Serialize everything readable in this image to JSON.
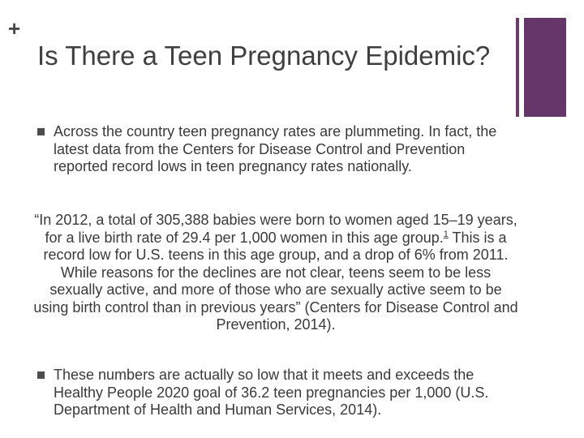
{
  "slide": {
    "corner_symbol": "+",
    "title": "Is There a Teen Pregnancy Epidemic?",
    "bullet_1": "Across the country teen pregnancy rates are plummeting. In fact, the latest data from the Centers for Disease Control and Prevention reported record lows in teen pregnancy rates nationally.",
    "quote_part_1": "“In 2012, a total of 305,388 babies were born to women aged 15–19 years, for a live birth rate of  29.4 per 1,000 women in this age group.",
    "quote_footnote": "1",
    "quote_part_2": " This is a record low for U.S. teens in this age group, and a drop of 6% from 2011. While reasons for the declines are not clear, teens seem to be less sexually active, and more of those who are sexually active seem to be using birth control than in previous years” (Centers for Disease Control and Prevention, 2014).",
    "bullet_2": "These numbers are actually so low that it meets and exceeds the Healthy People 2020 goal of 36.2 teen pregnancies per 1,000 (U.S. Department of Health and Human Services, 2014)."
  },
  "colors": {
    "accent": "#64366a",
    "text": "#3a3a3a",
    "background": "#ffffff"
  }
}
